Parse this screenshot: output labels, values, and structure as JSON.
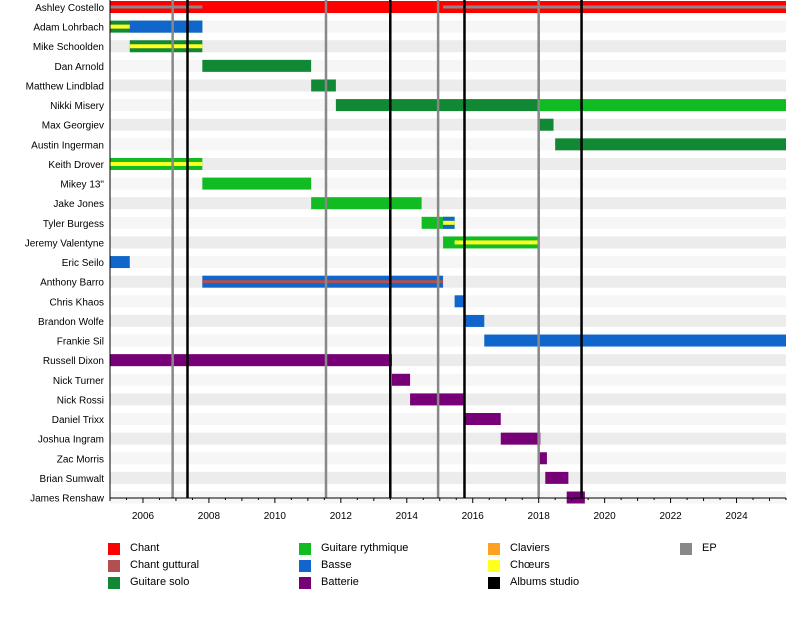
{
  "chart_data": {
    "type": "timeline",
    "x_range": [
      2005.0,
      2025.5
    ],
    "x_ticks": [
      2006,
      2008,
      2010,
      2012,
      2014,
      2016,
      2018,
      2020,
      2022,
      2024
    ],
    "grid": "alternating row bands",
    "colors": {
      "Chant": "#ff0000",
      "Chant guttural": "#b05050",
      "Guitare solo": "#118833",
      "Guitare rythmique": "#11bb22",
      "Basse": "#1166cc",
      "Batterie": "#770077",
      "Claviers": "#ffa020",
      "Chœurs": "#ffff22",
      "Albums studio": "#000000",
      "EP": "#888888"
    },
    "members": [
      {
        "name": "Ashley Costello",
        "bars": [
          {
            "role": "Chant",
            "start": 2005.0,
            "end": 2025.5
          },
          {
            "role": "EP",
            "start": 2005.0,
            "end": 2007.8,
            "stripe": true
          },
          {
            "role": "EP",
            "start": 2015.1,
            "end": 2025.5,
            "stripe": true
          }
        ]
      },
      {
        "name": "Adam Lohrbach",
        "bars": [
          {
            "role": "Guitare solo",
            "start": 2005.0,
            "end": 2007.8
          },
          {
            "role": "Basse",
            "start": 2005.6,
            "end": 2007.8
          },
          {
            "role": "Chœurs",
            "start": 2005.0,
            "end": 2005.6,
            "stripe": true
          }
        ]
      },
      {
        "name": "Mike Schoolden",
        "bars": [
          {
            "role": "Guitare solo",
            "start": 2005.6,
            "end": 2007.8
          },
          {
            "role": "Chœurs",
            "start": 2005.6,
            "end": 2007.8,
            "stripe": true
          }
        ]
      },
      {
        "name": "Dan Arnold",
        "bars": [
          {
            "role": "Guitare solo",
            "start": 2007.8,
            "end": 2011.1
          }
        ]
      },
      {
        "name": "Matthew Lindblad",
        "bars": [
          {
            "role": "Guitare solo",
            "start": 2011.1,
            "end": 2011.85
          }
        ]
      },
      {
        "name": "Nikki Misery",
        "bars": [
          {
            "role": "Guitare solo",
            "start": 2011.85,
            "end": 2018.0
          },
          {
            "role": "Guitare rythmique",
            "start": 2018.0,
            "end": 2025.5
          }
        ]
      },
      {
        "name": "Max Georgiev",
        "bars": [
          {
            "role": "Guitare solo",
            "start": 2018.0,
            "end": 2018.45
          }
        ]
      },
      {
        "name": "Austin Ingerman",
        "bars": [
          {
            "role": "Guitare solo",
            "start": 2018.5,
            "end": 2025.5
          }
        ]
      },
      {
        "name": "Keith Drover",
        "bars": [
          {
            "role": "Guitare rythmique",
            "start": 2005.0,
            "end": 2007.8
          },
          {
            "role": "Chœurs",
            "start": 2005.0,
            "end": 2007.8,
            "stripe": true
          }
        ]
      },
      {
        "name": "Mikey 13\"",
        "bars": [
          {
            "role": "Guitare rythmique",
            "start": 2007.8,
            "end": 2011.1
          }
        ]
      },
      {
        "name": "Jake Jones",
        "bars": [
          {
            "role": "Guitare rythmique",
            "start": 2011.1,
            "end": 2014.45
          }
        ]
      },
      {
        "name": "Tyler Burgess",
        "bars": [
          {
            "role": "Guitare rythmique",
            "start": 2014.45,
            "end": 2015.45
          },
          {
            "role": "Basse",
            "start": 2015.1,
            "end": 2015.45
          },
          {
            "role": "Chœurs",
            "start": 2015.1,
            "end": 2015.45,
            "stripe": true
          }
        ]
      },
      {
        "name": "Jeremy Valentyne",
        "bars": [
          {
            "role": "Guitare rythmique",
            "start": 2015.1,
            "end": 2018.0
          },
          {
            "role": "Chœurs",
            "start": 2015.45,
            "end": 2018.0,
            "stripe": true
          }
        ]
      },
      {
        "name": "Eric Seilo",
        "bars": [
          {
            "role": "Basse",
            "start": 2005.0,
            "end": 2005.6
          }
        ]
      },
      {
        "name": "Anthony Barro",
        "bars": [
          {
            "role": "Basse",
            "start": 2007.8,
            "end": 2015.1
          },
          {
            "role": "Chant guttural",
            "start": 2007.8,
            "end": 2015.1,
            "stripe": true
          }
        ]
      },
      {
        "name": "Chris Khaos",
        "bars": [
          {
            "role": "Basse",
            "start": 2015.45,
            "end": 2015.75
          }
        ]
      },
      {
        "name": "Brandon Wolfe",
        "bars": [
          {
            "role": "Basse",
            "start": 2015.75,
            "end": 2016.35
          }
        ]
      },
      {
        "name": "Frankie Sil",
        "bars": [
          {
            "role": "Basse",
            "start": 2016.35,
            "end": 2025.5
          }
        ]
      },
      {
        "name": "Russell Dixon",
        "bars": [
          {
            "role": "Batterie",
            "start": 2005.0,
            "end": 2013.55
          }
        ]
      },
      {
        "name": "Nick Turner",
        "bars": [
          {
            "role": "Batterie",
            "start": 2013.55,
            "end": 2014.1
          }
        ]
      },
      {
        "name": "Nick Rossi",
        "bars": [
          {
            "role": "Batterie",
            "start": 2014.1,
            "end": 2015.75
          }
        ]
      },
      {
        "name": "Daniel Trixx",
        "bars": [
          {
            "role": "Batterie",
            "start": 2015.75,
            "end": 2016.85
          }
        ]
      },
      {
        "name": "Joshua Ingram",
        "bars": [
          {
            "role": "Batterie",
            "start": 2016.85,
            "end": 2018.05
          }
        ]
      },
      {
        "name": "Zac Morris",
        "bars": [
          {
            "role": "Batterie",
            "start": 2018.0,
            "end": 2018.25
          }
        ]
      },
      {
        "name": "Brian Sumwalt",
        "bars": [
          {
            "role": "Batterie",
            "start": 2018.2,
            "end": 2018.9
          }
        ]
      },
      {
        "name": "James Renshaw",
        "bars": [
          {
            "role": "Batterie",
            "start": 2018.85,
            "end": 2019.4
          }
        ]
      }
    ],
    "album_lines": [
      2007.35,
      2013.5,
      2015.75,
      2019.3
    ],
    "ep_lines": [
      2006.9,
      2011.55,
      2014.95,
      2018.0
    ],
    "legend": [
      {
        "label": "Chant",
        "role": "Chant"
      },
      {
        "label": "Chant guttural",
        "role": "Chant guttural"
      },
      {
        "label": "Guitare solo",
        "role": "Guitare solo"
      },
      {
        "label": "Guitare rythmique",
        "role": "Guitare rythmique"
      },
      {
        "label": "Basse",
        "role": "Basse"
      },
      {
        "label": "Batterie",
        "role": "Batterie"
      },
      {
        "label": "Claviers",
        "role": "Claviers"
      },
      {
        "label": "Chœurs",
        "role": "Chœurs"
      },
      {
        "label": "Albums studio",
        "role": "Albums studio"
      },
      {
        "label": "EP",
        "role": "EP"
      }
    ],
    "legend_placement": "bottom"
  }
}
